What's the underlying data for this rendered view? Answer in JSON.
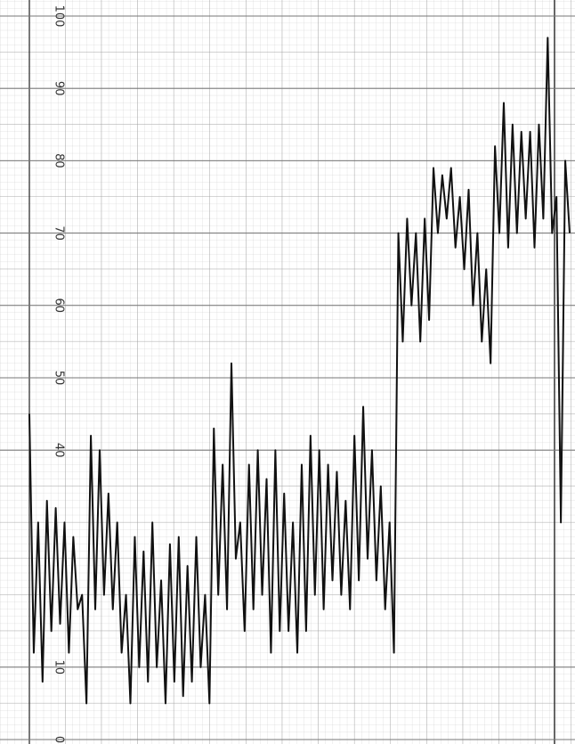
{
  "chart_data": {
    "type": "line",
    "yticks": [
      0,
      10,
      40,
      50,
      60,
      70,
      80,
      90,
      100
    ],
    "ylim": [
      0,
      100
    ],
    "grid": true,
    "color": "#111111",
    "values": [
      45,
      12,
      30,
      8,
      33,
      15,
      32,
      16,
      30,
      12,
      28,
      18,
      20,
      5,
      42,
      18,
      40,
      20,
      34,
      18,
      30,
      12,
      20,
      5,
      28,
      10,
      26,
      8,
      30,
      10,
      22,
      5,
      27,
      8,
      28,
      6,
      24,
      8,
      28,
      10,
      20,
      5,
      43,
      20,
      38,
      18,
      52,
      25,
      30,
      15,
      38,
      18,
      40,
      20,
      36,
      12,
      40,
      15,
      34,
      15,
      30,
      12,
      38,
      15,
      42,
      20,
      40,
      18,
      38,
      22,
      37,
      20,
      33,
      18,
      42,
      22,
      46,
      25,
      40,
      22,
      35,
      18,
      30,
      12,
      70,
      55,
      72,
      60,
      70,
      55,
      72,
      58,
      79,
      70,
      78,
      72,
      79,
      68,
      75,
      65,
      76,
      60,
      70,
      55,
      65,
      52,
      82,
      70,
      88,
      68,
      85,
      70,
      84,
      72,
      84,
      68,
      85,
      72,
      97,
      70,
      75,
      30,
      80,
      70
    ]
  }
}
